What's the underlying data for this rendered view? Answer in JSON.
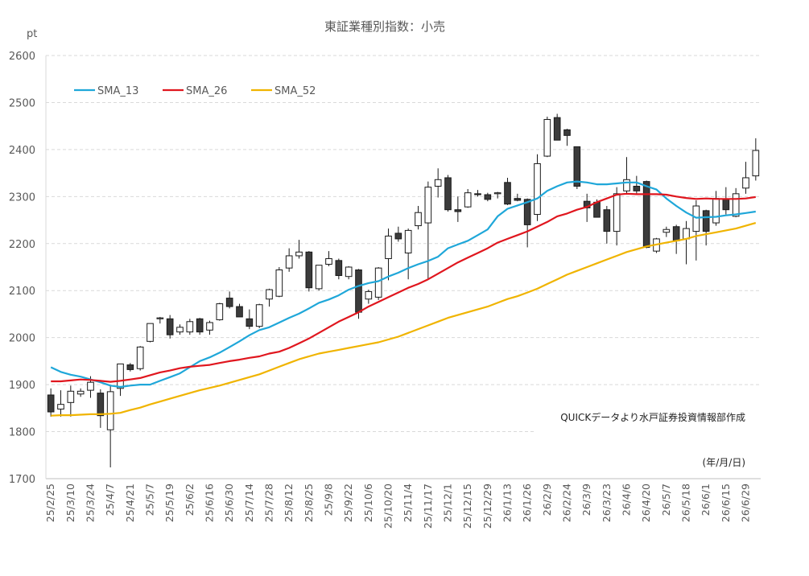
{
  "chart_data": {
    "type": "candlestick",
    "title": "東証業種別指数：小売",
    "yunit": "pt",
    "ylim": [
      1700,
      2600
    ],
    "yticks": [
      1700,
      1800,
      1900,
      2000,
      2100,
      2200,
      2300,
      2400,
      2500,
      2600
    ],
    "grid": true,
    "legend_position": "top-left",
    "date_axis_label": "(年/月/日)",
    "source_note": "QUICKデータより水戸証券投資情報部作成",
    "x_tick_labels": [
      "25/2/25",
      "25/3/10",
      "25/3/24",
      "25/4/7",
      "25/4/21",
      "25/5/7",
      "25/5/19",
      "25/6/2",
      "25/6/16",
      "25/6/30",
      "25/7/14",
      "25/7/28",
      "25/8/12",
      "25/8/25",
      "25/9/8",
      "25/9/22",
      "25/10/6",
      "25/10/20",
      "25/11/4",
      "25/11/17",
      "25/12/1",
      "25/12/15",
      "25/12/29",
      "26/1/13",
      "26/1/26",
      "26/2/9",
      "26/2/24",
      "26/3/9",
      "26/3/23",
      "26/4/6",
      "26/4/20",
      "26/5/7",
      "26/5/18",
      "26/6/1",
      "26/6/15",
      "26/6/29"
    ],
    "weeks": [
      {
        "date": "25/2/25",
        "o": 1878,
        "h": 1892,
        "l": 1832,
        "c": 1842
      },
      {
        "date": "25/3/3",
        "o": 1848,
        "h": 1888,
        "l": 1832,
        "c": 1858
      },
      {
        "date": "25/3/10",
        "o": 1862,
        "h": 1898,
        "l": 1832,
        "c": 1886
      },
      {
        "date": "25/3/17",
        "o": 1880,
        "h": 1892,
        "l": 1874,
        "c": 1886
      },
      {
        "date": "25/3/24",
        "o": 1888,
        "h": 1918,
        "l": 1872,
        "c": 1905
      },
      {
        "date": "25/3/31",
        "o": 1882,
        "h": 1890,
        "l": 1808,
        "c": 1834
      },
      {
        "date": "25/4/7",
        "o": 1804,
        "h": 1898,
        "l": 1724,
        "c": 1885
      },
      {
        "date": "25/4/14",
        "o": 1892,
        "h": 1942,
        "l": 1876,
        "c": 1944
      },
      {
        "date": "25/4/21",
        "o": 1942,
        "h": 1946,
        "l": 1928,
        "c": 1932
      },
      {
        "date": "25/4/28",
        "o": 1934,
        "h": 1982,
        "l": 1930,
        "c": 1980
      },
      {
        "date": "25/5/7",
        "o": 1992,
        "h": 2030,
        "l": 1990,
        "c": 2030
      },
      {
        "date": "25/5/12",
        "o": 2040,
        "h": 2044,
        "l": 2030,
        "c": 2042
      },
      {
        "date": "25/5/19",
        "o": 2040,
        "h": 2048,
        "l": 1998,
        "c": 2006
      },
      {
        "date": "25/5/26",
        "o": 2012,
        "h": 2028,
        "l": 2006,
        "c": 2022
      },
      {
        "date": "25/6/2",
        "o": 2012,
        "h": 2040,
        "l": 2006,
        "c": 2034
      },
      {
        "date": "25/6/9",
        "o": 2040,
        "h": 2042,
        "l": 2006,
        "c": 2012
      },
      {
        "date": "25/6/16",
        "o": 2016,
        "h": 2036,
        "l": 2006,
        "c": 2032
      },
      {
        "date": "25/6/23",
        "o": 2038,
        "h": 2074,
        "l": 2036,
        "c": 2072
      },
      {
        "date": "25/6/30",
        "o": 2084,
        "h": 2098,
        "l": 2062,
        "c": 2066
      },
      {
        "date": "25/7/7",
        "o": 2066,
        "h": 2072,
        "l": 2044,
        "c": 2044
      },
      {
        "date": "25/7/14",
        "o": 2040,
        "h": 2060,
        "l": 2018,
        "c": 2024
      },
      {
        "date": "25/7/22",
        "o": 2024,
        "h": 2072,
        "l": 2020,
        "c": 2070
      },
      {
        "date": "25/7/28",
        "o": 2082,
        "h": 2104,
        "l": 2066,
        "c": 2102
      },
      {
        "date": "25/8/4",
        "o": 2088,
        "h": 2150,
        "l": 2086,
        "c": 2144
      },
      {
        "date": "25/8/12",
        "o": 2148,
        "h": 2190,
        "l": 2140,
        "c": 2174
      },
      {
        "date": "25/8/18",
        "o": 2174,
        "h": 2208,
        "l": 2168,
        "c": 2182
      },
      {
        "date": "25/8/25",
        "o": 2182,
        "h": 2184,
        "l": 2098,
        "c": 2106
      },
      {
        "date": "25/9/1",
        "o": 2104,
        "h": 2154,
        "l": 2100,
        "c": 2154
      },
      {
        "date": "25/9/8",
        "o": 2156,
        "h": 2184,
        "l": 2152,
        "c": 2168
      },
      {
        "date": "25/9/16",
        "o": 2164,
        "h": 2168,
        "l": 2124,
        "c": 2132
      },
      {
        "date": "25/9/22",
        "o": 2130,
        "h": 2152,
        "l": 2124,
        "c": 2150
      },
      {
        "date": "25/9/29",
        "o": 2144,
        "h": 2146,
        "l": 2040,
        "c": 2054
      },
      {
        "date": "25/10/6",
        "o": 2082,
        "h": 2102,
        "l": 2072,
        "c": 2098
      },
      {
        "date": "25/10/14",
        "o": 2086,
        "h": 2150,
        "l": 2080,
        "c": 2148
      },
      {
        "date": "25/10/20",
        "o": 2168,
        "h": 2232,
        "l": 2122,
        "c": 2216
      },
      {
        "date": "25/10/27",
        "o": 2222,
        "h": 2236,
        "l": 2204,
        "c": 2210
      },
      {
        "date": "25/11/4",
        "o": 2180,
        "h": 2232,
        "l": 2124,
        "c": 2228
      },
      {
        "date": "25/11/10",
        "o": 2238,
        "h": 2280,
        "l": 2230,
        "c": 2266
      },
      {
        "date": "25/11/17",
        "o": 2244,
        "h": 2332,
        "l": 2124,
        "c": 2320
      },
      {
        "date": "25/11/25",
        "o": 2322,
        "h": 2360,
        "l": 2298,
        "c": 2336
      },
      {
        "date": "25/12/1",
        "o": 2340,
        "h": 2346,
        "l": 2268,
        "c": 2272
      },
      {
        "date": "25/12/8",
        "o": 2272,
        "h": 2300,
        "l": 2246,
        "c": 2268
      },
      {
        "date": "25/12/15",
        "o": 2278,
        "h": 2316,
        "l": 2276,
        "c": 2308
      },
      {
        "date": "25/12/22",
        "o": 2306,
        "h": 2314,
        "l": 2300,
        "c": 2304
      },
      {
        "date": "25/12/29",
        "o": 2304,
        "h": 2308,
        "l": 2290,
        "c": 2294
      },
      {
        "date": "26/1/5",
        "o": 2306,
        "h": 2310,
        "l": 2296,
        "c": 2308
      },
      {
        "date": "26/1/13",
        "o": 2330,
        "h": 2340,
        "l": 2282,
        "c": 2284
      },
      {
        "date": "26/1/19",
        "o": 2296,
        "h": 2306,
        "l": 2290,
        "c": 2292
      },
      {
        "date": "26/1/26",
        "o": 2294,
        "h": 2296,
        "l": 2192,
        "c": 2240
      },
      {
        "date": "26/2/2",
        "o": 2262,
        "h": 2390,
        "l": 2248,
        "c": 2370
      },
      {
        "date": "26/2/9",
        "o": 2386,
        "h": 2470,
        "l": 2384,
        "c": 2464
      },
      {
        "date": "26/2/16",
        "o": 2468,
        "h": 2476,
        "l": 2420,
        "c": 2420
      },
      {
        "date": "26/2/24",
        "o": 2442,
        "h": 2444,
        "l": 2408,
        "c": 2430
      },
      {
        "date": "26/3/2",
        "o": 2406,
        "h": 2406,
        "l": 2316,
        "c": 2322
      },
      {
        "date": "26/3/9",
        "o": 2290,
        "h": 2306,
        "l": 2246,
        "c": 2276
      },
      {
        "date": "26/3/16",
        "o": 2288,
        "h": 2294,
        "l": 2256,
        "c": 2256
      },
      {
        "date": "26/3/23",
        "o": 2272,
        "h": 2280,
        "l": 2200,
        "c": 2226
      },
      {
        "date": "26/3/30",
        "o": 2226,
        "h": 2320,
        "l": 2196,
        "c": 2306
      },
      {
        "date": "26/4/6",
        "o": 2312,
        "h": 2384,
        "l": 2304,
        "c": 2336
      },
      {
        "date": "26/4/13",
        "o": 2322,
        "h": 2344,
        "l": 2306,
        "c": 2312
      },
      {
        "date": "26/4/20",
        "o": 2332,
        "h": 2334,
        "l": 2190,
        "c": 2192
      },
      {
        "date": "26/4/27",
        "o": 2184,
        "h": 2212,
        "l": 2180,
        "c": 2210
      },
      {
        "date": "26/5/7",
        "o": 2224,
        "h": 2236,
        "l": 2214,
        "c": 2230
      },
      {
        "date": "26/5/11",
        "o": 2236,
        "h": 2240,
        "l": 2178,
        "c": 2206
      },
      {
        "date": "26/5/18",
        "o": 2210,
        "h": 2248,
        "l": 2156,
        "c": 2232
      },
      {
        "date": "26/5/25",
        "o": 2226,
        "h": 2292,
        "l": 2164,
        "c": 2280
      },
      {
        "date": "26/6/1",
        "o": 2270,
        "h": 2272,
        "l": 2196,
        "c": 2226
      },
      {
        "date": "26/6/8",
        "o": 2244,
        "h": 2312,
        "l": 2238,
        "c": 2296
      },
      {
        "date": "26/6/15",
        "o": 2294,
        "h": 2320,
        "l": 2262,
        "c": 2272
      },
      {
        "date": "26/6/22",
        "o": 2258,
        "h": 2318,
        "l": 2256,
        "c": 2306
      },
      {
        "date": "26/6/29",
        "o": 2318,
        "h": 2374,
        "l": 2306,
        "c": 2340
      },
      {
        "date": "26/7/6",
        "o": 2344,
        "h": 2424,
        "l": 2334,
        "c": 2398
      }
    ],
    "series": [
      {
        "name": "SMA_13",
        "color": "#1fa7d9",
        "values": [
          1937,
          1927,
          1921,
          1917,
          1911,
          1905,
          1898,
          1895,
          1898,
          1900,
          1900,
          1908,
          1916,
          1924,
          1937,
          1950,
          1958,
          1968,
          1980,
          1992,
          2005,
          2016,
          2022,
          2032,
          2042,
          2051,
          2062,
          2074,
          2081,
          2090,
          2102,
          2110,
          2116,
          2120,
          2130,
          2138,
          2148,
          2156,
          2163,
          2172,
          2190,
          2198,
          2206,
          2218,
          2230,
          2258,
          2274,
          2281,
          2288,
          2296,
          2312,
          2322,
          2330,
          2332,
          2330,
          2326,
          2326,
          2328,
          2330,
          2330,
          2322,
          2315,
          2296,
          2280,
          2266,
          2255,
          2256,
          2257,
          2260,
          2262,
          2265,
          2268
        ]
      },
      {
        "name": "SMA_26",
        "color": "#e0161e",
        "values": [
          1907,
          1907,
          1909,
          1911,
          1910,
          1908,
          1906,
          1908,
          1911,
          1914,
          1920,
          1926,
          1930,
          1935,
          1938,
          1940,
          1942,
          1946,
          1950,
          1953,
          1957,
          1960,
          1966,
          1970,
          1978,
          1988,
          1998,
          2010,
          2022,
          2034,
          2044,
          2054,
          2066,
          2076,
          2086,
          2096,
          2106,
          2114,
          2124,
          2136,
          2148,
          2160,
          2170,
          2180,
          2190,
          2202,
          2210,
          2218,
          2226,
          2236,
          2246,
          2258,
          2264,
          2272,
          2278,
          2288,
          2296,
          2304,
          2306,
          2305,
          2305,
          2305,
          2304,
          2300,
          2297,
          2295,
          2296,
          2295,
          2295,
          2295,
          2296,
          2299
        ]
      },
      {
        "name": "SMA_52",
        "color": "#f0b400",
        "values": [
          1834,
          1835,
          1835,
          1836,
          1837,
          1837,
          1838,
          1840,
          1846,
          1851,
          1858,
          1864,
          1870,
          1876,
          1882,
          1888,
          1893,
          1898,
          1904,
          1910,
          1916,
          1922,
          1930,
          1938,
          1946,
          1954,
          1960,
          1966,
          1970,
          1974,
          1978,
          1982,
          1986,
          1990,
          1996,
          2002,
          2010,
          2018,
          2026,
          2034,
          2042,
          2048,
          2054,
          2060,
          2066,
          2074,
          2082,
          2088,
          2096,
          2104,
          2114,
          2124,
          2134,
          2142,
          2150,
          2158,
          2166,
          2174,
          2182,
          2188,
          2194,
          2198,
          2202,
          2206,
          2210,
          2216,
          2220,
          2224,
          2228,
          2232,
          2238,
          2244
        ]
      }
    ]
  }
}
